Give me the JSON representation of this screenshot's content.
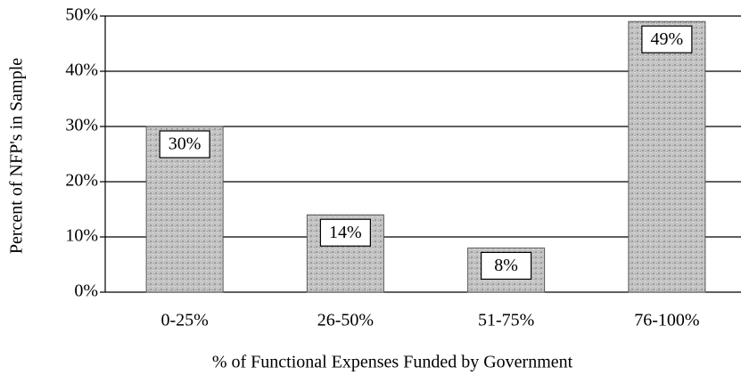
{
  "chart_data": {
    "type": "bar",
    "x_label": "% of Functional Expenses Funded by Government",
    "y_label": "Percent of NFP's in Sample",
    "categories": [
      "0-25%",
      "26-50%",
      "51-75%",
      "76-100%"
    ],
    "values": [
      30,
      14,
      8,
      49
    ],
    "value_labels": [
      "30%",
      "14%",
      "8%",
      "49%"
    ],
    "color": "#b8b8b8",
    "ylim": [
      0,
      50
    ],
    "yticks": [
      {
        "value": 0,
        "label": "0%"
      },
      {
        "value": 10,
        "label": "10%"
      },
      {
        "value": 20,
        "label": "20%"
      },
      {
        "value": 30,
        "label": "30%"
      },
      {
        "value": 40,
        "label": "40%"
      },
      {
        "value": 50,
        "label": "50%"
      }
    ],
    "grid": true
  }
}
